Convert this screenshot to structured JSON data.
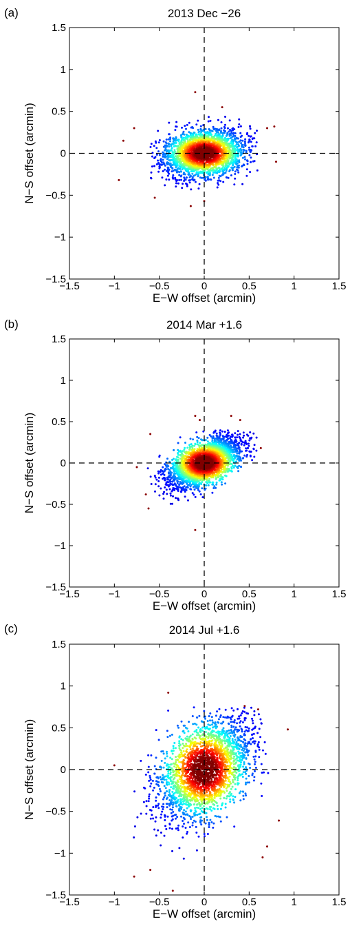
{
  "chart_data": [
    {
      "type": "scatter",
      "panel_label": "(a)",
      "title": "2013 Dec −26",
      "xlabel": "E−W offset (arcmin)",
      "ylabel": "N−S offset (arcmin)",
      "xlim": [
        -1.5,
        1.5
      ],
      "ylim": [
        -1.5,
        1.5
      ],
      "xticks": [
        "−1.5",
        "−1",
        "−0.5",
        "0",
        "0.5",
        "1",
        "1.5"
      ],
      "yticks": [
        "1.5",
        "1",
        "0.5",
        "0",
        "−0.5",
        "−1",
        "−1.5"
      ],
      "tick_values": [
        -1.5,
        -1,
        -0.5,
        0,
        0.5,
        1,
        1.5
      ],
      "reference_lines": {
        "x": 0,
        "y": 0,
        "style": "dashed"
      },
      "colormap": "jet (point density)",
      "point_cloud": {
        "n": 2600,
        "sigma_x": 0.22,
        "sigma_y": 0.14,
        "corr": 0.15,
        "x_range": [
          -0.6,
          0.6
        ],
        "y_range": [
          -0.45,
          0.45
        ],
        "seed": 11
      },
      "outliers": [
        [
          -0.9,
          0.15
        ],
        [
          -0.95,
          -0.32
        ],
        [
          -0.78,
          0.3
        ],
        [
          -0.55,
          -0.53
        ],
        [
          -0.1,
          0.73
        ],
        [
          0.2,
          0.55
        ],
        [
          -0.15,
          -0.63
        ],
        [
          0.0,
          -0.57
        ],
        [
          0.78,
          0.32
        ],
        [
          0.8,
          -0.1
        ],
        [
          0.7,
          0.3
        ]
      ]
    },
    {
      "type": "scatter",
      "panel_label": "(b)",
      "title": "2014 Mar +1.6",
      "xlabel": "E−W offset (arcmin)",
      "ylabel": "N−S offset (arcmin)",
      "xlim": [
        -1.5,
        1.5
      ],
      "ylim": [
        -1.5,
        1.5
      ],
      "xticks": [
        "−1.5",
        "−1",
        "−0.5",
        "0",
        "0.5",
        "1",
        "1.5"
      ],
      "yticks": [
        "1.5",
        "1",
        "0.5",
        "0",
        "−0.5",
        "−1",
        "−1.5"
      ],
      "tick_values": [
        -1.5,
        -1,
        -0.5,
        0,
        0.5,
        1,
        1.5
      ],
      "reference_lines": {
        "x": 0,
        "y": 0,
        "style": "dashed"
      },
      "colormap": "jet (point density)",
      "point_cloud": {
        "n": 2600,
        "sigma_x": 0.2,
        "sigma_y": 0.15,
        "corr": 0.55,
        "x_range": [
          -0.65,
          0.6
        ],
        "y_range": [
          -0.6,
          0.4
        ],
        "seed": 23
      },
      "outliers": [
        [
          -0.6,
          0.35
        ],
        [
          -0.75,
          -0.05
        ],
        [
          -0.65,
          -0.38
        ],
        [
          -0.62,
          -0.55
        ],
        [
          -0.1,
          -0.81
        ],
        [
          -0.1,
          0.57
        ],
        [
          0.3,
          0.57
        ],
        [
          0.4,
          0.52
        ],
        [
          0.63,
          0.18
        ],
        [
          -0.05,
          0.52
        ]
      ]
    },
    {
      "type": "scatter",
      "panel_label": "(c)",
      "title": "2014 Jul +1.6",
      "xlabel": "E−W offset (arcmin)",
      "ylabel": "N−S offset (arcmin)",
      "xlim": [
        -1.5,
        1.5
      ],
      "ylim": [
        -1.5,
        1.5
      ],
      "xticks": [
        "−1.5",
        "−1",
        "−0.5",
        "0",
        "0.5",
        "1",
        "1.5"
      ],
      "yticks": [
        "1.5",
        "1",
        "0.5",
        "0",
        "−0.5",
        "−1",
        "−1.5"
      ],
      "tick_values": [
        -1.5,
        -1,
        -0.5,
        0,
        0.5,
        1,
        1.5
      ],
      "reference_lines": {
        "x": 0,
        "y": 0,
        "style": "dashed"
      },
      "colormap": "jet (point density)",
      "point_cloud": {
        "n": 2600,
        "sigma_x": 0.25,
        "sigma_y": 0.3,
        "corr": 0.4,
        "x_range": [
          -0.8,
          0.75
        ],
        "y_range": [
          -1.2,
          0.75
        ],
        "seed": 37
      },
      "outliers": [
        [
          -0.4,
          0.92
        ],
        [
          -0.78,
          -1.28
        ],
        [
          -0.6,
          -1.2
        ],
        [
          -0.35,
          -1.45
        ],
        [
          -1.0,
          0.05
        ],
        [
          0.45,
          0.76
        ],
        [
          0.6,
          0.72
        ],
        [
          0.93,
          0.48
        ],
        [
          0.83,
          -0.61
        ],
        [
          0.65,
          -1.05
        ],
        [
          0.7,
          -0.92
        ]
      ]
    }
  ]
}
